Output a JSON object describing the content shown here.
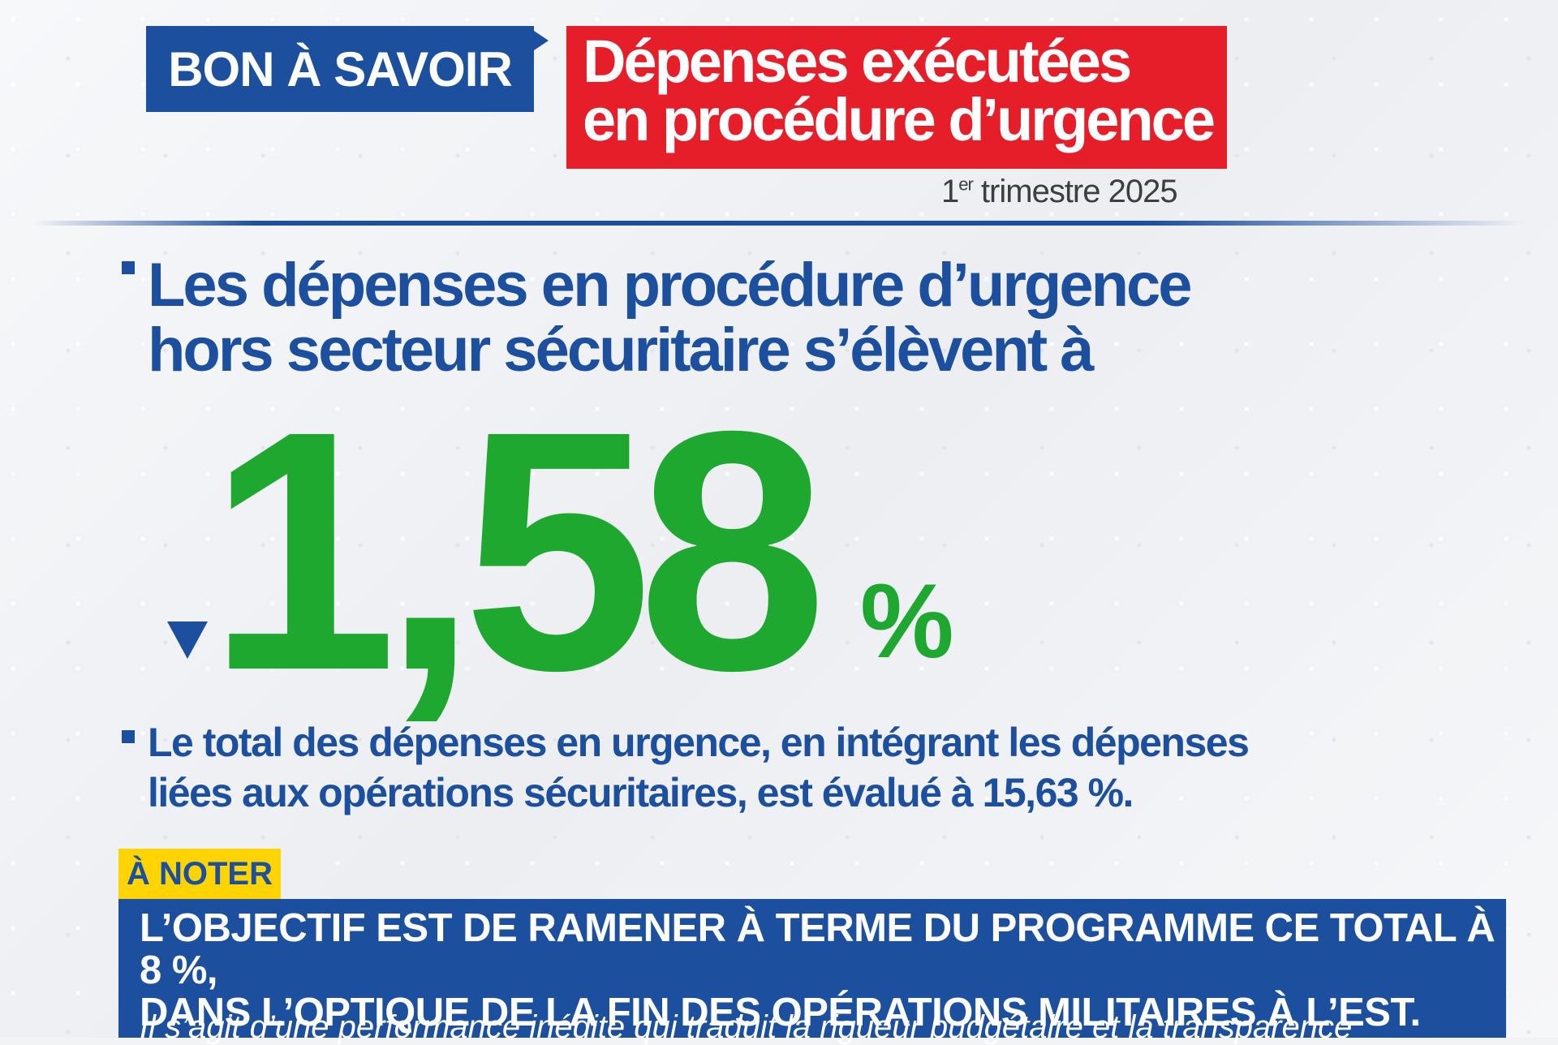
{
  "header": {
    "tag": "BON À SAVOIR",
    "title_line1": "Dépenses exécutées",
    "title_line2": "en procédure d’urgence",
    "period_num": "1",
    "period_sup": "er",
    "period_rest": " trimestre 2025"
  },
  "main": {
    "lead_line1": "Les dépenses en procédure d’urgence",
    "lead_line2": "hors secteur sécuritaire s’élèvent à",
    "big_value": "1,58",
    "big_unit": "%",
    "sub_line1": "Le total des dépenses en urgence, en intégrant les dépenses",
    "sub_line2": "liées aux opérations sécuritaires, est évalué à 15,63 %."
  },
  "note": {
    "tag": "À NOTER",
    "line1": "L’OBJECTIF EST DE RAMENER À TERME DU PROGRAMME CE TOTAL À 8 %,",
    "line2": "DANS L’OPTIQUE DE LA FIN DES OPÉRATIONS MILITAIRES À L’EST.",
    "italic": "Il s’agit d’une performance inédite qui traduit la rigueur budgétaire et la transparence"
  },
  "colors": {
    "blue": "#1d4f9f",
    "red": "#e51e2a",
    "green": "#1ea830",
    "yellow": "#ffd400"
  }
}
